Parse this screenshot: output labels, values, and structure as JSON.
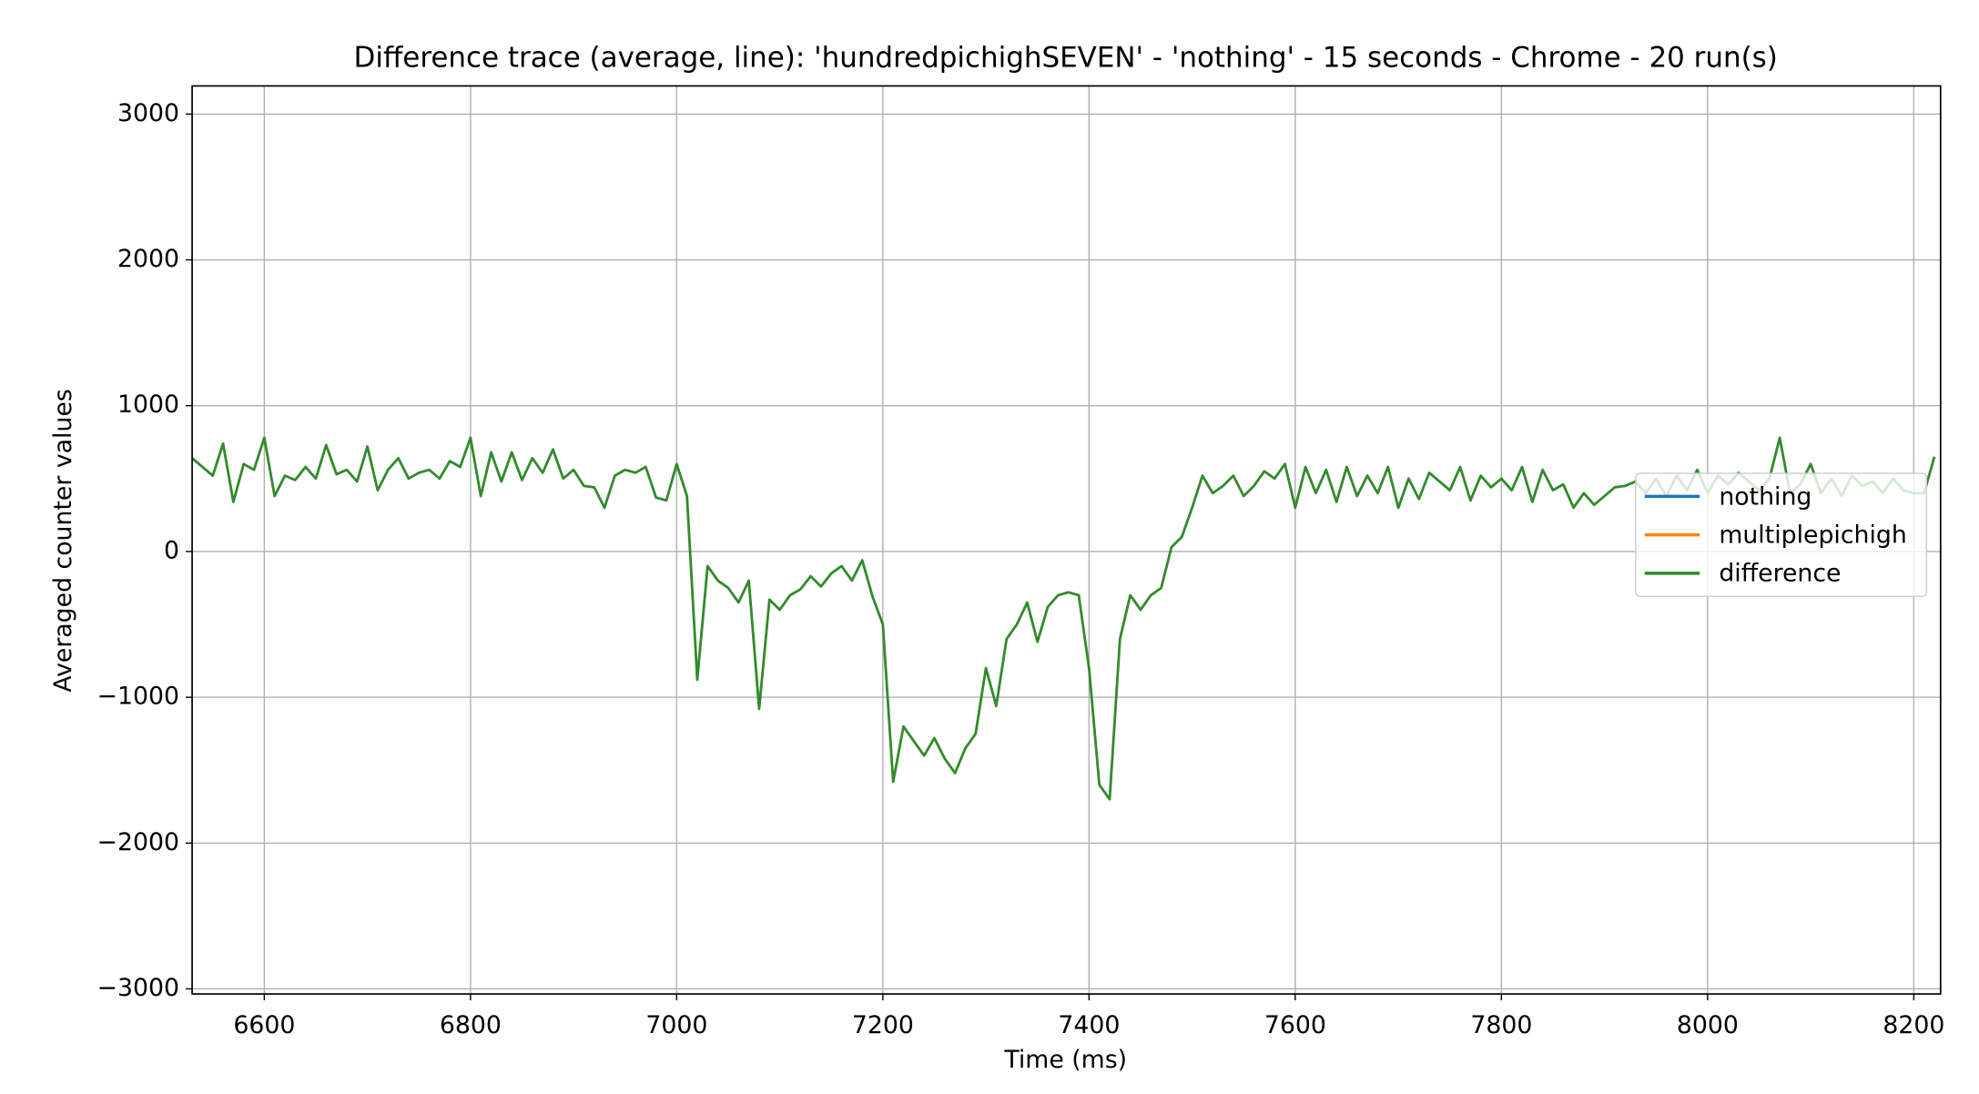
{
  "chart_data": {
    "type": "line",
    "title": "Difference trace (average, line): 'hundredpichighSEVEN' - 'nothing' - 15 seconds - Chrome - 20 run(s)",
    "x_label": "Time (ms)",
    "y_label": "Averaged counter values",
    "x": [
      6530,
      6540,
      6550,
      6560,
      6570,
      6580,
      6590,
      6600,
      6610,
      6620,
      6630,
      6640,
      6650,
      6660,
      6670,
      6680,
      6690,
      6700,
      6710,
      6720,
      6730,
      6740,
      6750,
      6760,
      6770,
      6780,
      6790,
      6800,
      6810,
      6820,
      6830,
      6840,
      6850,
      6860,
      6870,
      6880,
      6890,
      6900,
      6910,
      6920,
      6930,
      6940,
      6950,
      6960,
      6970,
      6980,
      6990,
      7000,
      7010,
      7020,
      7030,
      7040,
      7050,
      7060,
      7070,
      7080,
      7090,
      7100,
      7110,
      7120,
      7130,
      7140,
      7150,
      7160,
      7170,
      7180,
      7190,
      7200,
      7210,
      7220,
      7230,
      7240,
      7250,
      7260,
      7270,
      7280,
      7290,
      7300,
      7310,
      7320,
      7330,
      7340,
      7350,
      7360,
      7370,
      7380,
      7390,
      7400,
      7410,
      7420,
      7430,
      7440,
      7450,
      7460,
      7470,
      7480,
      7490,
      7500,
      7510,
      7520,
      7530,
      7540,
      7550,
      7560,
      7570,
      7580,
      7590,
      7600,
      7610,
      7620,
      7630,
      7640,
      7650,
      7660,
      7670,
      7680,
      7690,
      7700,
      7710,
      7720,
      7730,
      7740,
      7750,
      7760,
      7770,
      7780,
      7790,
      7800,
      7810,
      7820,
      7830,
      7840,
      7850,
      7860,
      7870,
      7880,
      7890,
      7900,
      7910,
      7920,
      7930,
      7940,
      7950,
      7960,
      7970,
      7980,
      7990,
      8000,
      8010,
      8020,
      8030,
      8040,
      8050,
      8060,
      8070,
      8080,
      8090,
      8100,
      8110,
      8120,
      8130,
      8140,
      8150,
      8160,
      8170,
      8180,
      8190,
      8200,
      8210,
      8220
    ],
    "series": [
      {
        "name": "nothing",
        "color": "#1f77b4",
        "values": [
          null,
          null,
          null,
          null,
          null,
          null,
          null,
          null,
          null,
          null,
          null,
          null,
          null,
          null,
          null,
          null,
          null,
          null,
          null,
          null,
          null,
          null,
          null,
          null,
          null,
          null,
          null,
          null,
          null,
          null,
          null,
          null,
          null,
          null,
          null,
          null,
          null,
          null,
          null,
          null,
          null,
          null,
          null,
          null,
          null,
          null,
          null,
          null,
          null,
          null,
          null,
          null,
          null,
          null,
          null,
          null,
          null,
          null,
          null,
          null,
          null,
          null,
          null,
          null,
          null,
          null,
          null,
          null,
          null,
          null,
          null,
          null,
          null,
          null,
          null,
          null,
          null,
          null,
          null,
          null,
          null,
          null,
          null,
          null,
          null,
          null,
          null,
          null,
          null,
          null,
          null,
          null,
          null,
          null,
          null,
          null,
          null,
          null,
          null,
          null,
          null,
          null,
          null,
          null,
          null,
          null,
          null,
          null,
          null,
          null,
          null,
          null,
          null,
          null,
          null,
          null,
          null,
          null,
          null,
          null,
          null,
          null,
          null,
          null,
          null,
          null,
          null,
          null,
          null,
          null,
          null,
          null,
          null,
          null,
          null,
          null,
          null,
          null,
          null,
          null,
          null,
          null,
          null,
          null,
          null,
          null,
          null,
          null,
          null,
          null,
          null,
          null,
          null,
          null,
          null,
          null,
          null,
          null,
          null,
          null,
          null,
          null,
          null,
          null,
          null,
          null,
          null,
          null,
          null,
          null
        ]
      },
      {
        "name": "multiplepichigh",
        "color": "#ff7f0e",
        "values": [
          null,
          null,
          null,
          null,
          null,
          null,
          null,
          null,
          null,
          null,
          null,
          null,
          null,
          null,
          null,
          null,
          null,
          null,
          null,
          null,
          null,
          null,
          null,
          null,
          null,
          null,
          null,
          null,
          null,
          null,
          null,
          null,
          null,
          null,
          null,
          null,
          null,
          null,
          null,
          null,
          null,
          null,
          null,
          null,
          null,
          null,
          null,
          null,
          null,
          null,
          null,
          null,
          null,
          null,
          null,
          null,
          null,
          null,
          null,
          null,
          null,
          null,
          null,
          null,
          null,
          null,
          null,
          null,
          null,
          null,
          null,
          null,
          null,
          null,
          null,
          null,
          null,
          null,
          null,
          null,
          null,
          null,
          null,
          null,
          null,
          null,
          null,
          null,
          null,
          null,
          null,
          null,
          null,
          null,
          null,
          null,
          null,
          null,
          null,
          null,
          null,
          null,
          null,
          null,
          null,
          null,
          null,
          null,
          null,
          null,
          null,
          null,
          null,
          null,
          null,
          null,
          null,
          null,
          null,
          null,
          null,
          null,
          null,
          null,
          null,
          null,
          null,
          null,
          null,
          null,
          null,
          null,
          null,
          null,
          null,
          null,
          null,
          null,
          null,
          null,
          null,
          null,
          null,
          null,
          null,
          null,
          null,
          null,
          null,
          null,
          null,
          null,
          null,
          null,
          null,
          null,
          null,
          null,
          null,
          null,
          null,
          null,
          null,
          null,
          null,
          null,
          null,
          null,
          null,
          null
        ]
      },
      {
        "name": "difference",
        "color": "#338a2b",
        "values": [
          640,
          580,
          520,
          740,
          340,
          600,
          560,
          780,
          380,
          520,
          490,
          580,
          500,
          730,
          530,
          560,
          480,
          720,
          420,
          560,
          640,
          500,
          540,
          560,
          500,
          620,
          580,
          780,
          380,
          680,
          480,
          680,
          490,
          640,
          540,
          700,
          500,
          560,
          450,
          440,
          300,
          520,
          560,
          540,
          580,
          370,
          350,
          600,
          380,
          -880,
          -100,
          -200,
          -250,
          -350,
          -200,
          -1080,
          -330,
          -400,
          -300,
          -260,
          -170,
          -240,
          -150,
          -100,
          -200,
          -60,
          -310,
          -500,
          -1580,
          -1200,
          -1300,
          -1400,
          -1280,
          -1420,
          -1520,
          -1350,
          -1250,
          -800,
          -1060,
          -600,
          -500,
          -350,
          -620,
          -380,
          -300,
          -280,
          -300,
          -800,
          -1600,
          -1700,
          -600,
          -300,
          -400,
          -300,
          -250,
          30,
          100,
          300,
          520,
          400,
          450,
          520,
          380,
          450,
          550,
          500,
          600,
          300,
          580,
          400,
          560,
          340,
          580,
          380,
          520,
          400,
          580,
          300,
          500,
          360,
          540,
          480,
          420,
          580,
          350,
          520,
          440,
          500,
          420,
          580,
          340,
          560,
          420,
          460,
          300,
          400,
          320,
          380,
          440,
          450,
          480,
          400,
          500,
          380,
          520,
          420,
          560,
          400,
          520,
          460,
          540,
          480,
          420,
          500,
          780,
          400,
          460,
          600,
          400,
          500,
          380,
          520,
          450,
          480,
          400,
          500,
          420,
          400,
          400,
          650
        ]
      }
    ],
    "xlim": [
      6530,
      8226
    ],
    "ylim": [
      -3035,
      3193
    ],
    "xticks": [
      6600,
      6800,
      7000,
      7200,
      7400,
      7600,
      7800,
      8000,
      8200
    ],
    "yticks": [
      {
        "value": -3000,
        "label": "−3000"
      },
      {
        "value": -2000,
        "label": "−2000"
      },
      {
        "value": -1000,
        "label": "−1000"
      },
      0,
      1000,
      2000,
      3000
    ],
    "grid": true,
    "legend": "center right"
  }
}
